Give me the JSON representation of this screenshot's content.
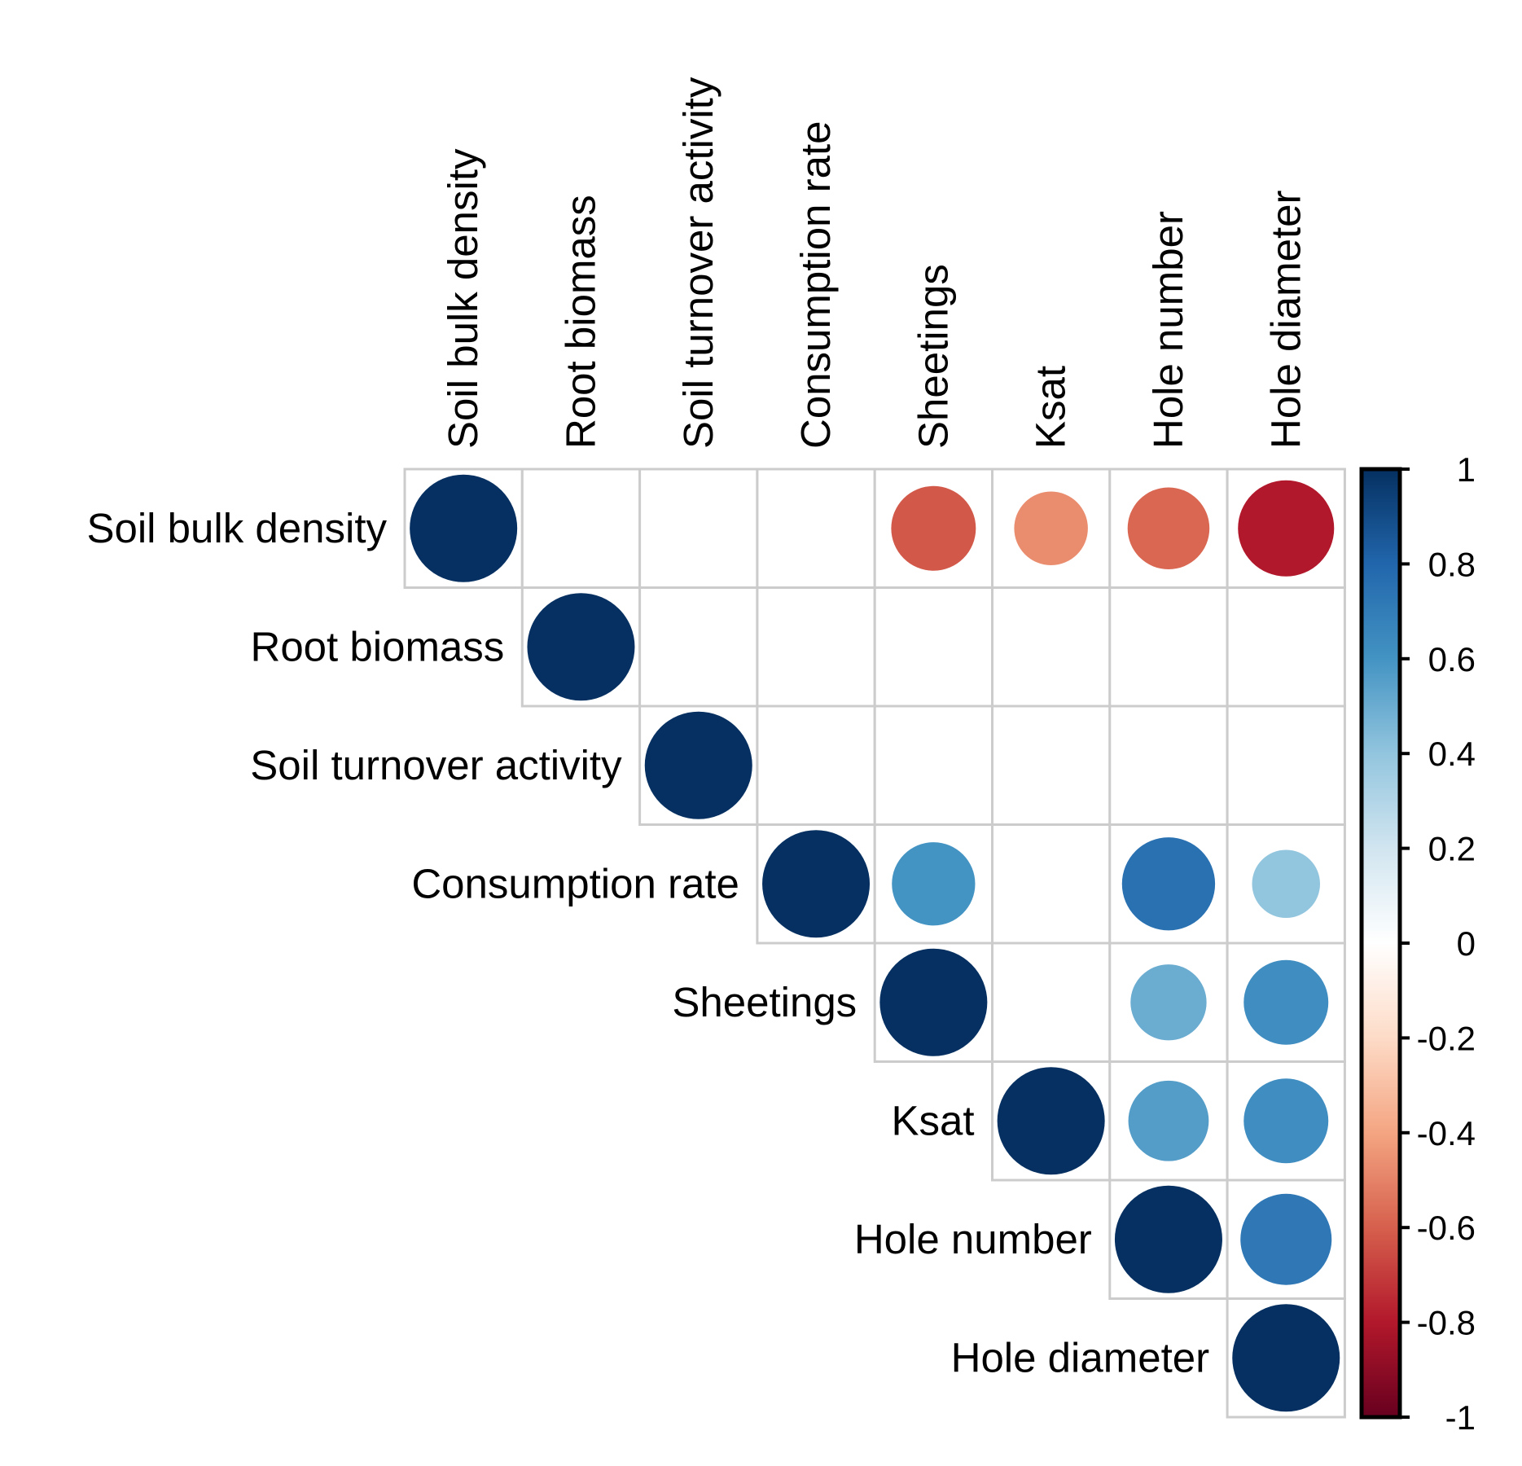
{
  "chart_data": {
    "type": "heatmap",
    "subtype": "corrplot-upper-circle",
    "variables": [
      "Soil bulk density",
      "Root biomass",
      "Soil turnover activity",
      "Consumption rate",
      "Sheetings",
      "Ksat",
      "Hole number",
      "Hole diameter"
    ],
    "matrix": [
      [
        1,
        null,
        null,
        null,
        -0.62,
        -0.47,
        -0.58,
        -0.8
      ],
      [
        null,
        1,
        null,
        null,
        null,
        null,
        null,
        null
      ],
      [
        null,
        null,
        1,
        null,
        null,
        null,
        null,
        null
      ],
      [
        null,
        null,
        null,
        1,
        0.6,
        null,
        0.75,
        0.4
      ],
      [
        null,
        null,
        null,
        null,
        1,
        null,
        0.5,
        0.62
      ],
      [
        null,
        null,
        null,
        null,
        null,
        1,
        0.56,
        0.62
      ],
      [
        null,
        null,
        null,
        null,
        null,
        null,
        1,
        0.72
      ],
      [
        null,
        null,
        null,
        null,
        null,
        null,
        null,
        1
      ]
    ],
    "colorbar": {
      "range": [
        -1,
        1
      ],
      "ticks": [
        "1",
        "0.8",
        "0.6",
        "0.4",
        "0.2",
        "0",
        "-0.2",
        "-0.4",
        "-0.6",
        "-0.8",
        "-1"
      ],
      "palette": [
        "#67001F",
        "#B2182B",
        "#D6604D",
        "#F4A582",
        "#FDDBC7",
        "#FFFFFF",
        "#D1E5F0",
        "#92C5DE",
        "#4393C3",
        "#2166AC",
        "#053061"
      ]
    },
    "grid_color": "#cccccc"
  }
}
